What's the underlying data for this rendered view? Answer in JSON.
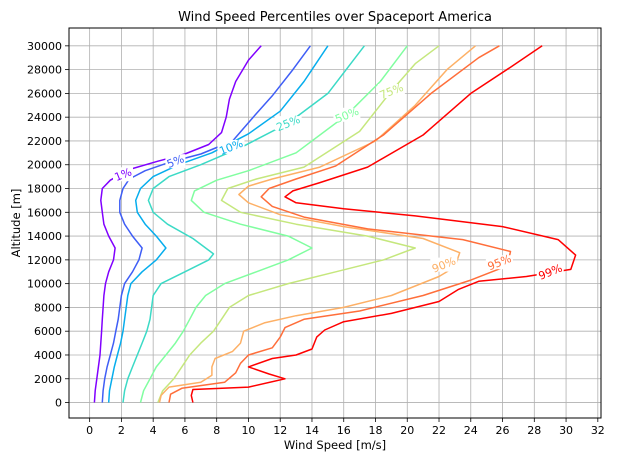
{
  "chart_data": {
    "type": "line",
    "title": "Wind Speed Percentiles over Spaceport America",
    "xlabel": "Wind Speed [m/s]",
    "ylabel": "Altitude [m]",
    "xlim": [
      -1.3,
      32.2
    ],
    "ylim": [
      -1300,
      31500
    ],
    "xticks": [
      "0",
      "2",
      "4",
      "6",
      "8",
      "10",
      "12",
      "14",
      "16",
      "18",
      "20",
      "22",
      "24",
      "26",
      "28",
      "30",
      "32"
    ],
    "xtick_values": [
      0,
      2,
      4,
      6,
      8,
      10,
      12,
      14,
      16,
      18,
      20,
      22,
      24,
      26,
      28,
      30,
      32
    ],
    "yticks": [
      "0",
      "2000",
      "4000",
      "6000",
      "8000",
      "10000",
      "12000",
      "14000",
      "16000",
      "18000",
      "20000",
      "22000",
      "24000",
      "26000",
      "28000",
      "30000"
    ],
    "ytick_values": [
      0,
      2000,
      4000,
      6000,
      8000,
      10000,
      12000,
      14000,
      16000,
      18000,
      20000,
      22000,
      24000,
      26000,
      28000,
      30000
    ],
    "grid": true,
    "legend": "none (inline contour labels)",
    "series": [
      {
        "name": "1%",
        "color": "#8000ff",
        "label_at": [
          2.1,
          19200
        ],
        "points": [
          [
            0.3,
            0
          ],
          [
            0.35,
            1000
          ],
          [
            0.45,
            2000
          ],
          [
            0.55,
            3000
          ],
          [
            0.65,
            4000
          ],
          [
            0.7,
            5000
          ],
          [
            0.75,
            6000
          ],
          [
            0.8,
            7000
          ],
          [
            0.85,
            8000
          ],
          [
            0.9,
            9000
          ],
          [
            1.0,
            10000
          ],
          [
            1.2,
            11000
          ],
          [
            1.5,
            12000
          ],
          [
            1.6,
            13000
          ],
          [
            1.2,
            14000
          ],
          [
            0.9,
            15000
          ],
          [
            0.8,
            16000
          ],
          [
            0.7,
            17000
          ],
          [
            0.8,
            18000
          ],
          [
            1.3,
            18700
          ],
          [
            2.5,
            19600
          ],
          [
            4.3,
            20300
          ],
          [
            6.0,
            20900
          ],
          [
            7.5,
            21700
          ],
          [
            8.3,
            22700
          ],
          [
            8.6,
            24000
          ],
          [
            8.8,
            25500
          ],
          [
            9.2,
            27000
          ],
          [
            10.0,
            28800
          ],
          [
            10.8,
            30000
          ]
        ]
      },
      {
        "name": "5%",
        "color": "#3f5ef6",
        "label_at": [
          5.4,
          20300
        ],
        "points": [
          [
            0.8,
            0
          ],
          [
            0.85,
            1000
          ],
          [
            0.95,
            2000
          ],
          [
            1.1,
            3000
          ],
          [
            1.3,
            4000
          ],
          [
            1.5,
            5000
          ],
          [
            1.65,
            6000
          ],
          [
            1.8,
            7000
          ],
          [
            1.9,
            8000
          ],
          [
            2.0,
            9000
          ],
          [
            2.2,
            10000
          ],
          [
            2.7,
            11000
          ],
          [
            3.1,
            12000
          ],
          [
            3.3,
            13000
          ],
          [
            2.7,
            14000
          ],
          [
            2.2,
            15000
          ],
          [
            1.9,
            16000
          ],
          [
            1.9,
            17000
          ],
          [
            2.1,
            18000
          ],
          [
            2.5,
            18800
          ],
          [
            3.5,
            19500
          ],
          [
            5.0,
            20200
          ],
          [
            7.0,
            20900
          ],
          [
            9.0,
            22000
          ],
          [
            10.3,
            24000
          ],
          [
            11.5,
            25800
          ],
          [
            12.8,
            28000
          ],
          [
            13.9,
            30000
          ]
        ]
      },
      {
        "name": "10%",
        "color": "#06aded",
        "label_at": [
          8.9,
          21500
        ],
        "points": [
          [
            1.2,
            0
          ],
          [
            1.25,
            1000
          ],
          [
            1.4,
            2000
          ],
          [
            1.55,
            3000
          ],
          [
            1.75,
            4000
          ],
          [
            1.95,
            5000
          ],
          [
            2.1,
            6000
          ],
          [
            2.2,
            7000
          ],
          [
            2.3,
            8000
          ],
          [
            2.4,
            9000
          ],
          [
            2.6,
            10000
          ],
          [
            3.3,
            11000
          ],
          [
            4.2,
            12000
          ],
          [
            4.8,
            13000
          ],
          [
            4.2,
            14000
          ],
          [
            3.5,
            15000
          ],
          [
            3.0,
            16000
          ],
          [
            2.9,
            17000
          ],
          [
            3.2,
            18000
          ],
          [
            4.0,
            19000
          ],
          [
            5.6,
            20000
          ],
          [
            7.7,
            21000
          ],
          [
            10.0,
            22600
          ],
          [
            12.0,
            24500
          ],
          [
            13.5,
            27000
          ],
          [
            15.0,
            30000
          ]
        ]
      },
      {
        "name": "25%",
        "color": "#3bdac6",
        "label_at": [
          12.5,
          23500
        ],
        "points": [
          [
            2.1,
            0
          ],
          [
            2.2,
            1000
          ],
          [
            2.4,
            2000
          ],
          [
            2.7,
            3000
          ],
          [
            3.0,
            4000
          ],
          [
            3.3,
            5000
          ],
          [
            3.6,
            6000
          ],
          [
            3.8,
            7000
          ],
          [
            3.9,
            8000
          ],
          [
            4.0,
            9000
          ],
          [
            4.5,
            10000
          ],
          [
            6.0,
            11000
          ],
          [
            7.5,
            12000
          ],
          [
            7.8,
            12500
          ],
          [
            6.5,
            13800
          ],
          [
            4.9,
            15000
          ],
          [
            4.0,
            16000
          ],
          [
            3.7,
            17000
          ],
          [
            4.0,
            18000
          ],
          [
            5.0,
            19000
          ],
          [
            7.0,
            20000
          ],
          [
            9.6,
            21500
          ],
          [
            12.5,
            23500
          ],
          [
            15.0,
            26000
          ],
          [
            17.3,
            30000
          ]
        ]
      },
      {
        "name": "50%",
        "color": "#81fea0",
        "label_at": [
          16.2,
          24200
        ],
        "points": [
          [
            3.2,
            0
          ],
          [
            3.4,
            1000
          ],
          [
            3.8,
            2000
          ],
          [
            4.2,
            3000
          ],
          [
            4.8,
            4000
          ],
          [
            5.4,
            5000
          ],
          [
            5.9,
            6000
          ],
          [
            6.3,
            7000
          ],
          [
            6.7,
            8000
          ],
          [
            7.3,
            9000
          ],
          [
            8.5,
            10000
          ],
          [
            10.5,
            11000
          ],
          [
            12.5,
            12000
          ],
          [
            14.0,
            13000
          ],
          [
            12.5,
            14000
          ],
          [
            9.5,
            15000
          ],
          [
            7.2,
            16000
          ],
          [
            6.4,
            17000
          ],
          [
            6.6,
            17800
          ],
          [
            8.0,
            18700
          ],
          [
            10.0,
            19500
          ],
          [
            13.0,
            21000
          ],
          [
            16.2,
            24200
          ],
          [
            18.3,
            27000
          ],
          [
            20.0,
            30000
          ]
        ]
      },
      {
        "name": "75%",
        "color": "#c5e77d",
        "label_at": [
          19.0,
          26200
        ],
        "points": [
          [
            4.3,
            0
          ],
          [
            4.6,
            1000
          ],
          [
            5.3,
            2000
          ],
          [
            5.8,
            3000
          ],
          [
            6.3,
            4000
          ],
          [
            7.0,
            5000
          ],
          [
            7.8,
            6000
          ],
          [
            8.3,
            7000
          ],
          [
            8.8,
            8000
          ],
          [
            10.0,
            9000
          ],
          [
            12.5,
            10000
          ],
          [
            15.5,
            11000
          ],
          [
            18.5,
            12000
          ],
          [
            20.5,
            13000
          ],
          [
            17.5,
            14000
          ],
          [
            13.0,
            15000
          ],
          [
            9.5,
            16000
          ],
          [
            8.3,
            17000
          ],
          [
            8.7,
            18000
          ],
          [
            10.5,
            18800
          ],
          [
            13.5,
            19800
          ],
          [
            17.0,
            22800
          ],
          [
            19.0,
            26200
          ],
          [
            20.5,
            28500
          ],
          [
            22.0,
            30000
          ]
        ]
      },
      {
        "name": "90%",
        "color": "#fdb066",
        "label_at": [
          22.3,
          11600
        ],
        "points": [
          [
            4.4,
            0
          ],
          [
            4.5,
            600
          ],
          [
            5.0,
            1300
          ],
          [
            7.0,
            1700
          ],
          [
            7.7,
            2300
          ],
          [
            7.7,
            3000
          ],
          [
            7.9,
            3700
          ],
          [
            9.0,
            4300
          ],
          [
            9.5,
            5000
          ],
          [
            9.7,
            6000
          ],
          [
            11.0,
            6700
          ],
          [
            13.0,
            7300
          ],
          [
            16.0,
            8000
          ],
          [
            19.0,
            9000
          ],
          [
            22.0,
            10600
          ],
          [
            23.0,
            11400
          ],
          [
            23.3,
            12600
          ],
          [
            21.0,
            13800
          ],
          [
            16.0,
            14800
          ],
          [
            12.0,
            15800
          ],
          [
            10.0,
            16800
          ],
          [
            9.4,
            17500
          ],
          [
            10.0,
            18200
          ],
          [
            11.5,
            18800
          ],
          [
            14.5,
            19800
          ],
          [
            18.0,
            22000
          ],
          [
            20.5,
            25000
          ],
          [
            22.5,
            28000
          ],
          [
            24.3,
            30000
          ]
        ]
      },
      {
        "name": "95%",
        "color": "#ff6e3a",
        "label_at": [
          25.8,
          11800
        ],
        "points": [
          [
            5.0,
            0
          ],
          [
            5.1,
            700
          ],
          [
            5.8,
            1200
          ],
          [
            8.5,
            1700
          ],
          [
            9.2,
            2500
          ],
          [
            9.5,
            3300
          ],
          [
            10.0,
            4000
          ],
          [
            11.5,
            4600
          ],
          [
            12.0,
            5500
          ],
          [
            12.3,
            6300
          ],
          [
            13.5,
            7000
          ],
          [
            17.0,
            7700
          ],
          [
            21.0,
            9000
          ],
          [
            24.0,
            10300
          ],
          [
            26.3,
            11500
          ],
          [
            26.5,
            12700
          ],
          [
            23.5,
            13700
          ],
          [
            17.5,
            14600
          ],
          [
            13.5,
            15600
          ],
          [
            11.5,
            16500
          ],
          [
            10.8,
            17300
          ],
          [
            11.3,
            18000
          ],
          [
            13.0,
            18800
          ],
          [
            15.5,
            19900
          ],
          [
            18.5,
            22500
          ],
          [
            21.5,
            26000
          ],
          [
            24.5,
            29000
          ],
          [
            25.8,
            30000
          ]
        ]
      },
      {
        "name": "99%",
        "color": "#ff0000",
        "label_at": [
          29.0,
          11000
        ],
        "points": [
          [
            6.5,
            0
          ],
          [
            6.4,
            600
          ],
          [
            6.5,
            1100
          ],
          [
            10.0,
            1300
          ],
          [
            12.3,
            2000
          ],
          [
            11.3,
            2400
          ],
          [
            10.0,
            3000
          ],
          [
            11.5,
            3700
          ],
          [
            13.0,
            4000
          ],
          [
            14.0,
            4500
          ],
          [
            14.3,
            5500
          ],
          [
            14.8,
            6100
          ],
          [
            16.0,
            6800
          ],
          [
            19.0,
            7500
          ],
          [
            22.0,
            8500
          ],
          [
            23.2,
            9500
          ],
          [
            24.5,
            10200
          ],
          [
            27.5,
            10600
          ],
          [
            30.3,
            11200
          ],
          [
            30.6,
            12400
          ],
          [
            29.5,
            13700
          ],
          [
            26.0,
            14800
          ],
          [
            20.5,
            15700
          ],
          [
            16.0,
            16300
          ],
          [
            13.0,
            16800
          ],
          [
            12.3,
            17300
          ],
          [
            12.8,
            17800
          ],
          [
            14.5,
            18500
          ],
          [
            17.5,
            19800
          ],
          [
            21.0,
            22500
          ],
          [
            24.0,
            26000
          ],
          [
            26.5,
            28200
          ],
          [
            28.5,
            30000
          ]
        ]
      }
    ]
  }
}
